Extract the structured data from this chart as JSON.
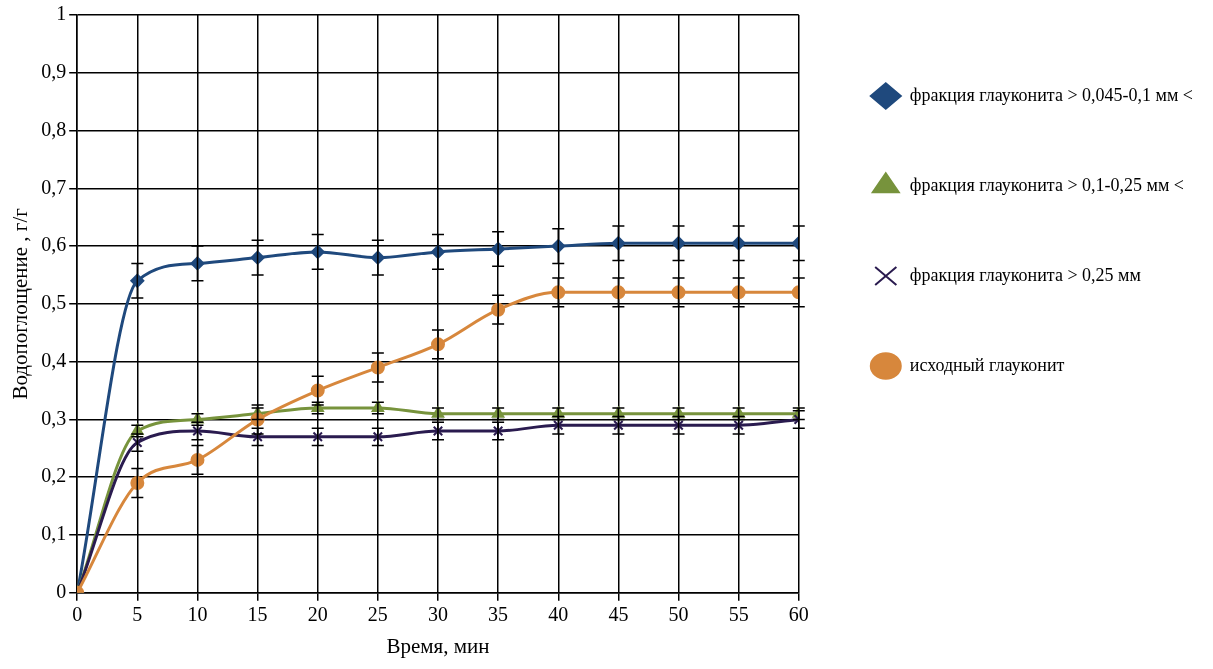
{
  "chart_data": {
    "type": "line",
    "xlabel": "Время, мин",
    "ylabel": "Водопоглощение , г/г",
    "x": [
      0,
      5,
      10,
      15,
      20,
      25,
      30,
      35,
      40,
      45,
      50,
      55,
      60
    ],
    "xlim": [
      0,
      60
    ],
    "xticks": [
      0,
      5,
      10,
      15,
      20,
      25,
      30,
      35,
      40,
      45,
      50,
      55,
      60
    ],
    "ylim": [
      0,
      1
    ],
    "yticks": [
      0,
      {
        "value": 0.1,
        "label": "0,1"
      },
      {
        "value": 0.2,
        "label": "0,2"
      },
      {
        "value": 0.3,
        "label": "0,3"
      },
      {
        "value": 0.4,
        "label": "0,4"
      },
      {
        "value": 0.5,
        "label": "0,5"
      },
      {
        "value": 0.6,
        "label": "0,6"
      },
      {
        "value": 0.7,
        "label": "0,7"
      },
      {
        "value": 0.8,
        "label": "0,8"
      },
      {
        "value": 0.9,
        "label": "0,9"
      },
      1
    ],
    "grid": true,
    "legend": "right",
    "line_style": "solid",
    "series": [
      {
        "name": "фракция глауконита > 0,045-0,1 мм <",
        "color": "#1f497d",
        "marker": "diamond",
        "values": [
          0,
          0.54,
          0.57,
          0.58,
          0.59,
          0.58,
          0.59,
          0.595,
          0.6,
          0.605,
          0.605,
          0.605,
          0.605
        ],
        "errors": [
          null,
          0.03,
          0.03,
          0.03,
          0.03,
          0.03,
          0.03,
          0.03,
          0.03,
          0.03,
          0.03,
          0.03,
          0.03
        ]
      },
      {
        "name": "фракция глауконита > 0,1-0,25 мм <",
        "color": "#77933c",
        "marker": "triangle",
        "values": [
          0,
          0.28,
          0.3,
          0.31,
          0.32,
          0.32,
          0.31,
          0.31,
          0.31,
          0.31,
          0.31,
          0.31,
          0.31
        ],
        "errors": [
          null,
          0.01,
          0.01,
          0.01,
          0.01,
          0.01,
          0.01,
          0.01,
          0.01,
          0.01,
          0.01,
          0.01,
          0.01
        ]
      },
      {
        "name": "фракция глауконита > 0,25 мм",
        "color": "#2a1b4f",
        "marker": "cross",
        "values": [
          0,
          0.26,
          0.28,
          0.27,
          0.27,
          0.27,
          0.28,
          0.28,
          0.29,
          0.29,
          0.29,
          0.29,
          0.3
        ],
        "errors": [
          null,
          0.015,
          0.015,
          0.015,
          0.015,
          0.015,
          0.015,
          0.015,
          0.015,
          0.015,
          0.015,
          0.015,
          0.015
        ]
      },
      {
        "name": "исходный глауконит",
        "color": "#d7873c",
        "marker": "circle",
        "values": [
          0,
          0.19,
          0.23,
          0.3,
          0.35,
          0.39,
          0.43,
          0.49,
          0.52,
          0.52,
          0.52,
          0.52,
          0.52
        ],
        "errors": [
          null,
          0.025,
          0.025,
          0.025,
          0.025,
          0.025,
          0.025,
          0.025,
          0.025,
          0.025,
          0.025,
          0.025,
          0.025
        ]
      }
    ]
  }
}
